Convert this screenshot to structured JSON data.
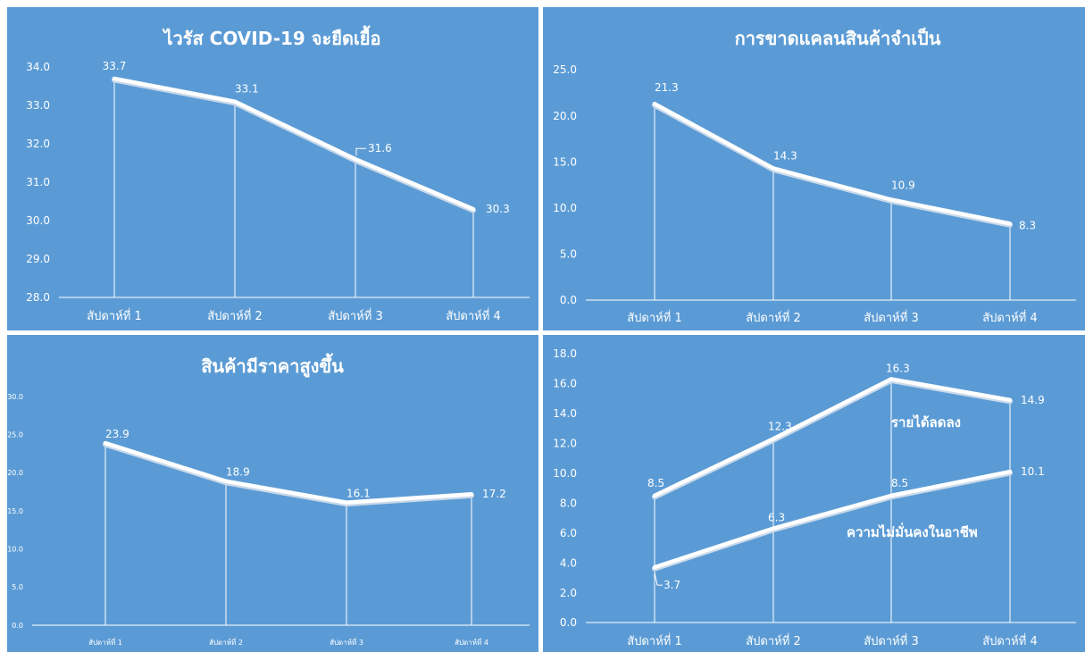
{
  "colors": {
    "background": "#5b9bd5",
    "line": "#ffffff",
    "text": "#ffffff"
  },
  "chart_data": [
    {
      "type": "line",
      "title": "ไวรัส COVID-19 จะยืดเยื้อ",
      "categories": [
        "สัปดาห์ที่ 1",
        "สัปดาห์ที่ 2",
        "สัปดาห์ที่ 3",
        "สัปดาห์ที่ 4"
      ],
      "yticks": [
        "28.0",
        "29.0",
        "30.0",
        "31.0",
        "32.0",
        "33.0",
        "34.0"
      ],
      "ylim": [
        28,
        34
      ],
      "series": [
        {
          "values": [
            33.7,
            33.1,
            31.6,
            30.3
          ],
          "labels": [
            "33.7",
            "33.1",
            "31.6",
            "30.3"
          ]
        }
      ],
      "grid": false
    },
    {
      "type": "line",
      "title": "การขาดแคลนสินค้าจำเป็น",
      "categories": [
        "สัปดาห์ที่ 1",
        "สัปดาห์ที่ 2",
        "สัปดาห์ที่ 3",
        "สัปดาห์ที่ 4"
      ],
      "yticks": [
        "0.0",
        "5.0",
        "10.0",
        "15.0",
        "20.0",
        "25.0"
      ],
      "ylim": [
        0,
        25
      ],
      "series": [
        {
          "values": [
            21.3,
            14.3,
            10.9,
            8.3
          ],
          "labels": [
            "21.3",
            "14.3",
            "10.9",
            "8.3"
          ]
        }
      ],
      "grid": false
    },
    {
      "type": "line",
      "title": "สินค้ามีราคาสูงขึ้น",
      "categories": [
        "สัปดาห์ที่ 1",
        "สัปดาห์ที่ 2",
        "สัปดาห์ที่ 3",
        "สัปดาห์ที่ 4"
      ],
      "yticks": [
        "0.0",
        "5.0",
        "10.0",
        "15.0",
        "20.0",
        "25.0",
        "30.0"
      ],
      "ylim": [
        0,
        30
      ],
      "series": [
        {
          "values": [
            23.9,
            18.9,
            16.1,
            17.2
          ],
          "labels": [
            "23.9",
            "18.9",
            "16.1",
            "17.2"
          ]
        }
      ],
      "grid": false
    },
    {
      "type": "line",
      "title": "",
      "categories": [
        "สัปดาห์ที่ 1",
        "สัปดาห์ที่ 2",
        "สัปดาห์ที่ 3",
        "สัปดาห์ที่ 4"
      ],
      "yticks": [
        "0.0",
        "2.0",
        "4.0",
        "6.0",
        "8.0",
        "10.0",
        "12.0",
        "14.0",
        "16.0",
        "18.0"
      ],
      "ylim": [
        0,
        18
      ],
      "series": [
        {
          "name": "รายได้ลดลง",
          "values": [
            8.5,
            12.3,
            16.3,
            14.9
          ],
          "labels": [
            "8.5",
            "12.3",
            "16.3",
            "14.9"
          ]
        },
        {
          "name": "ความไม่มั่นคงในอาชีพ",
          "values": [
            3.7,
            6.3,
            8.5,
            10.1
          ],
          "labels": [
            "3.7",
            "6.3",
            "8.5",
            "10.1"
          ]
        }
      ],
      "grid": false
    }
  ]
}
